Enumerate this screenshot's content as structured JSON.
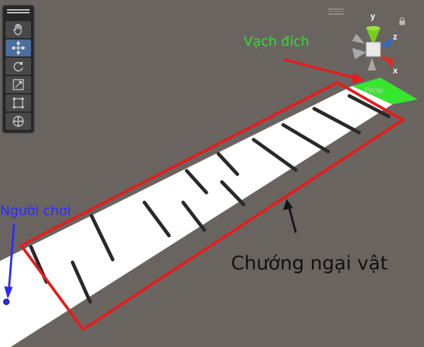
{
  "scene": {
    "finish_label": "Vạch đích",
    "player_label": "Người chơi",
    "obstacle_label": "Chướng ngại vật",
    "persp_label": "Persp"
  },
  "tools": [
    {
      "name": "hand-tool",
      "icon": "hand-icon"
    },
    {
      "name": "move-tool",
      "icon": "move-icon",
      "active": true
    },
    {
      "name": "rotate-tool",
      "icon": "rotate-icon"
    },
    {
      "name": "scale-tool",
      "icon": "scale-icon"
    },
    {
      "name": "rect-tool",
      "icon": "rect-icon"
    },
    {
      "name": "transform-tool",
      "icon": "transform-icon"
    }
  ],
  "gizmo": {
    "y": "y",
    "z": "z",
    "x": "x"
  },
  "colors": {
    "background": "#6a6461",
    "track": "#ffffff",
    "finish": "#37e62f",
    "annotation": "#e41c1c",
    "player": "#2b2bff",
    "finish_text": "#2de02d",
    "obstacle": "#2a2a2a"
  }
}
